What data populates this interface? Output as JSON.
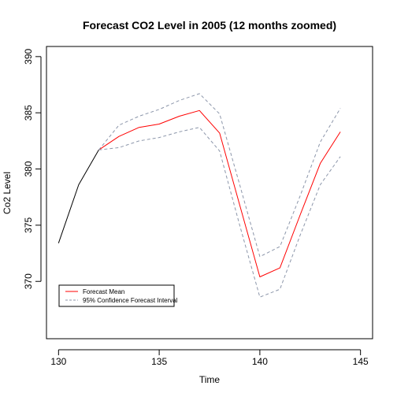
{
  "chart_data": {
    "type": "line",
    "title": "Forecast CO2 Level in 2005 (12 months zoomed)",
    "xlabel": "Time",
    "ylabel": "Co2 Level",
    "xlim": [
      129.4,
      145.6
    ],
    "ylim": [
      364.9,
      390.9
    ],
    "x_ticks": [
      130,
      135,
      140,
      145
    ],
    "y_ticks": [
      370,
      375,
      380,
      385,
      390
    ],
    "grid": false,
    "legend_position": "bottom-left",
    "series": [
      {
        "key": "observed",
        "color": "#000000",
        "dash": "solid",
        "x": [
          130,
          131,
          132
        ],
        "y": [
          373.4,
          378.6,
          381.7
        ]
      },
      {
        "key": "mean",
        "name": "Forecast Mean",
        "color": "#ff0000",
        "dash": "solid",
        "x": [
          132,
          133,
          134,
          135,
          136,
          137,
          138,
          139,
          140,
          141,
          142,
          143,
          144
        ],
        "y": [
          381.7,
          382.9,
          383.7,
          384.0,
          384.7,
          385.2,
          383.2,
          376.8,
          370.4,
          371.2,
          375.9,
          380.5,
          383.3
        ]
      },
      {
        "key": "upper",
        "name": "95% Confidence Forecast Interval",
        "color": "#8c96aa",
        "dash": "dashed",
        "x": [
          132,
          133,
          134,
          135,
          136,
          137,
          138,
          139,
          140,
          141,
          142,
          143,
          144
        ],
        "y": [
          381.7,
          383.9,
          384.7,
          385.3,
          386.1,
          386.7,
          384.9,
          378.6,
          372.2,
          373.1,
          377.6,
          382.4,
          385.4
        ]
      },
      {
        "key": "lower",
        "color": "#8c96aa",
        "dash": "dashed",
        "x": [
          132,
          133,
          134,
          135,
          136,
          137,
          138,
          139,
          140,
          141,
          142,
          143,
          144
        ],
        "y": [
          381.7,
          381.9,
          382.5,
          382.8,
          383.3,
          383.7,
          381.6,
          375.0,
          368.6,
          369.3,
          374.1,
          378.6,
          381.1
        ]
      }
    ],
    "legend": [
      {
        "label": "Forecast Mean",
        "color": "#ff0000",
        "dash": "solid"
      },
      {
        "label": "95% Confidence Forecast Interval",
        "color": "#8c96aa",
        "dash": "dashed"
      }
    ]
  }
}
